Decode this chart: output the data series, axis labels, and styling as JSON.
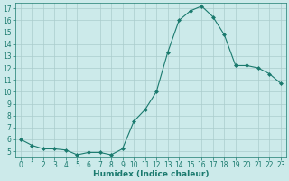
{
  "x": [
    0,
    1,
    2,
    3,
    4,
    5,
    6,
    7,
    8,
    9,
    10,
    11,
    12,
    13,
    14,
    15,
    16,
    17,
    18,
    19,
    20,
    21,
    22,
    23
  ],
  "y": [
    6.0,
    5.5,
    5.2,
    5.2,
    5.1,
    4.7,
    4.9,
    4.9,
    4.7,
    5.2,
    7.5,
    8.5,
    10.0,
    13.3,
    16.0,
    16.8,
    17.2,
    16.3,
    14.8,
    12.2,
    12.2,
    12.0,
    11.5,
    10.7
  ],
  "line_color": "#1a7a6e",
  "marker": "D",
  "marker_size": 2,
  "bg_color": "#cceaea",
  "grid_color": "#aacccc",
  "xlabel": "Humidex (Indice chaleur)",
  "ylim": [
    4.5,
    17.5
  ],
  "xlim": [
    -0.5,
    23.5
  ],
  "yticks": [
    5,
    6,
    7,
    8,
    9,
    10,
    11,
    12,
    13,
    14,
    15,
    16,
    17
  ],
  "xticks": [
    0,
    1,
    2,
    3,
    4,
    5,
    6,
    7,
    8,
    9,
    10,
    11,
    12,
    13,
    14,
    15,
    16,
    17,
    18,
    19,
    20,
    21,
    22,
    23
  ],
  "tick_color": "#1a7a6e",
  "label_color": "#1a7a6e",
  "tick_fontsize": 5.5,
  "xlabel_fontsize": 6.5,
  "linewidth": 0.8
}
